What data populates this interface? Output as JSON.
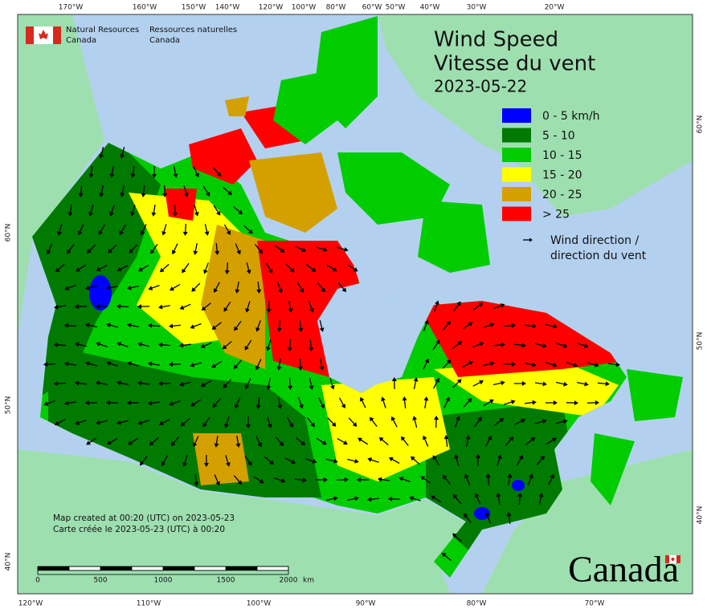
{
  "branding": {
    "department_en": [
      "Natural Resources",
      "Canada"
    ],
    "department_fr": [
      "Ressources naturelles",
      "Canada"
    ],
    "wordmark": "Canada"
  },
  "title": [
    "Wind Speed",
    "Vitesse du vent"
  ],
  "date": "2023-05-22",
  "legend": {
    "items": [
      {
        "label": "0 - 5 km/h",
        "color": "#0000ff"
      },
      {
        "label": "5 - 10",
        "color": "#007a00"
      },
      {
        "label": "10 - 15",
        "color": "#00cc00"
      },
      {
        "label": "15 - 20",
        "color": "#ffff00"
      },
      {
        "label": "20 - 25",
        "color": "#d4a000"
      },
      {
        "label": "> 25",
        "color": "#ff0000"
      }
    ],
    "direction": [
      "Wind direction /",
      "direction du vent"
    ]
  },
  "credits": [
    "Map created at 00:20 (UTC) on 2023-05-23",
    "Carte créée le 2023-05-23 (UTC) à 00:20"
  ],
  "top_longitudes": [
    "170°W",
    "160°W",
    "150°W",
    "140°W",
    "120°W",
    "100°W",
    "80°W",
    "60°W",
    "50°W",
    "40°W",
    "30°W",
    "20°W"
  ],
  "bottom_longitudes": [
    "120°W",
    "110°W",
    "100°W",
    "90°W",
    "80°W",
    "70°W"
  ],
  "left_latitudes": [
    "60°N",
    "50°N",
    "40°N"
  ],
  "right_latitudes": [
    "60°N",
    "50°N",
    "40°N"
  ],
  "scale_bar": {
    "labels": [
      "0",
      "500",
      "1000",
      "1500",
      "2000"
    ],
    "unit": "km"
  }
}
